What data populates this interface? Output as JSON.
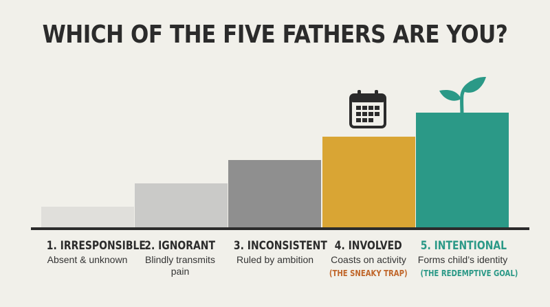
{
  "title": "WHICH OF THE FIVE FATHERS ARE YOU?",
  "colors": {
    "step1": "#e0dfdb",
    "step2": "#cacac8",
    "step3": "#8f8f8f",
    "step4": "#d9a534",
    "step5": "#2b9987",
    "sneaky_trap": "#c0662a",
    "accent": "#2b9987",
    "text": "#2b2b2b"
  },
  "icons": {
    "involved": "calendar-icon",
    "intentional": "sprout-icon"
  },
  "fathers": [
    {
      "label": "1. IRRESPONSIBLE",
      "desc": "Absent & unknown",
      "note": ""
    },
    {
      "label": "2. IGNORANT",
      "desc": "Blindly transmits pain",
      "note": ""
    },
    {
      "label": "3. INCONSISTENT",
      "desc": "Ruled by ambition",
      "note": ""
    },
    {
      "label": "4. INVOLVED",
      "desc": "Coasts on activity",
      "note": "(THE SNEAKY TRAP)"
    },
    {
      "label": "5. INTENTIONAL",
      "desc": "Forms child’s identity",
      "note": "(THE REDEMPTIVE GOAL)"
    }
  ]
}
